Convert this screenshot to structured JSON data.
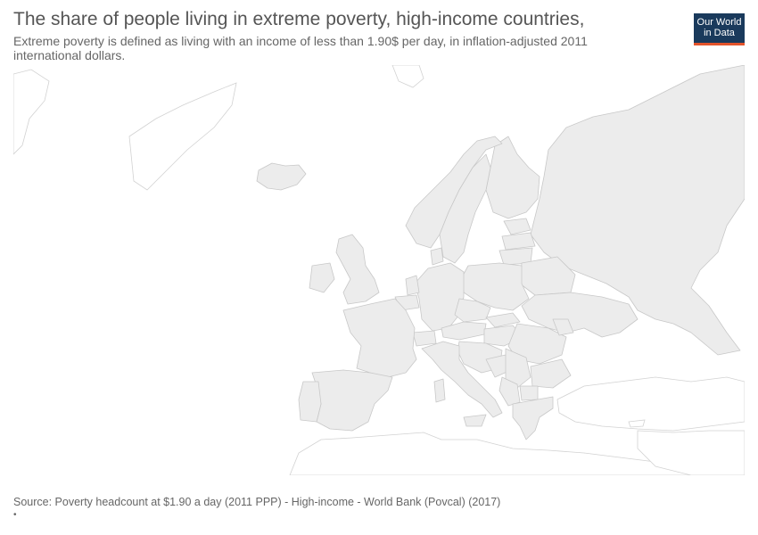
{
  "header": {
    "title": "The share of people living in extreme poverty, high-income countries,",
    "subtitle": "Extreme poverty is defined as living with an income of less than 1.90$ per day, in inflation-adjusted 2011 international dollars."
  },
  "logo": {
    "line1": "Our World",
    "line2": "in Data",
    "bg_color": "#1a3a5c",
    "accent_color": "#e3542b"
  },
  "map": {
    "region": "Europe",
    "no_data_fill": "#ececec",
    "border_color": "#c8c8c8"
  },
  "footer": {
    "source": "Source: Poverty headcount at $1.90 a day (2011 PPP) - High-income - World Bank (Povcal) (2017)",
    "note": "•"
  }
}
